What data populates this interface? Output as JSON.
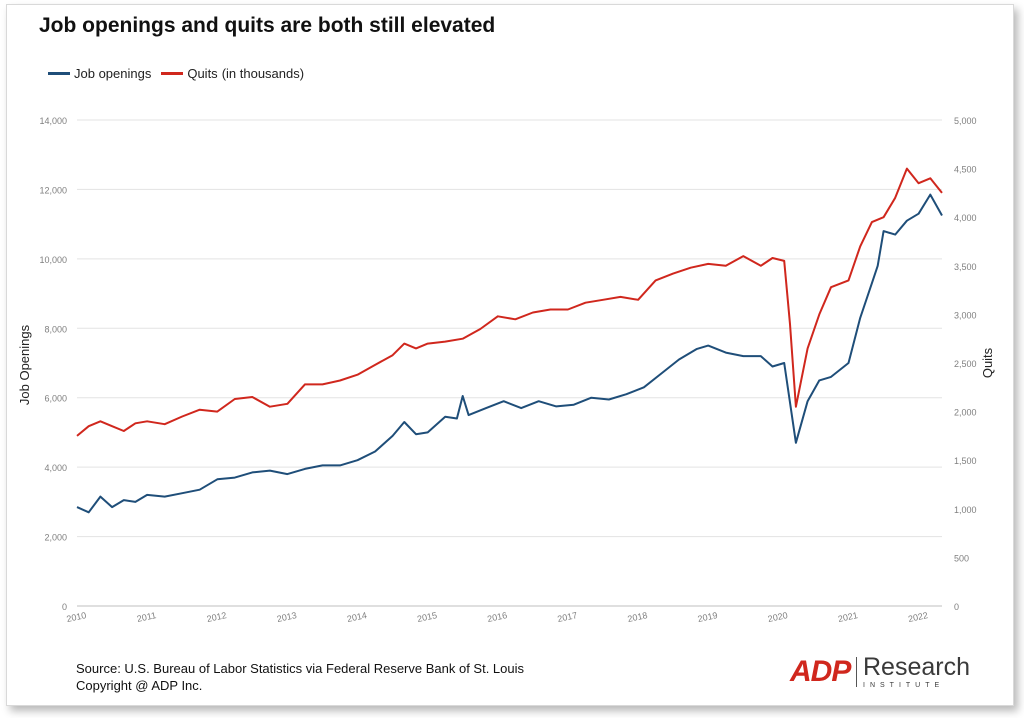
{
  "title": "Job openings and quits are both still elevated",
  "legend": {
    "job_openings": "Job openings",
    "quits": "Quits",
    "unit": "(in thousands)"
  },
  "footer": {
    "source": "Source: U.S. Bureau of Labor Statistics via Federal Reserve Bank of St. Louis",
    "copyright": "Copyright @ ADP Inc."
  },
  "logo": {
    "mark": "ADP",
    "name": "Research",
    "subtitle": "INSTITUTE"
  },
  "colors": {
    "job_openings": "#1f4e79",
    "quits": "#d0271d",
    "grid": "#e3e3e3",
    "tick_text": "#7f7f7f"
  },
  "chart_data": {
    "type": "line",
    "ylabel_left": "Job Openings",
    "ylabel_right": "Quits",
    "ylim_left": [
      0,
      14000
    ],
    "ylim_right": [
      0,
      5000
    ],
    "yticks_left": [
      "0",
      "2,000",
      "4,000",
      "6,000",
      "8,000",
      "10,000",
      "12,000",
      "14,000"
    ],
    "yticks_right": [
      "0",
      "500",
      "1,000",
      "1,500",
      "2,000",
      "2,500",
      "3,000",
      "3,500",
      "4,000",
      "4,500",
      "5,000"
    ],
    "xticks": [
      "2010",
      "2011",
      "2012",
      "2013",
      "2014",
      "2015",
      "2016",
      "2017",
      "2018",
      "2019",
      "2020",
      "2021",
      "2022"
    ],
    "grid": "horizontal",
    "legend_position": "top-left",
    "x_start": "2010-01",
    "x_end": "2022-05",
    "series": [
      {
        "name": "Job openings",
        "axis": "left",
        "points": [
          [
            "2010-01",
            2850
          ],
          [
            "2010-03",
            2700
          ],
          [
            "2010-05",
            3150
          ],
          [
            "2010-07",
            2850
          ],
          [
            "2010-09",
            3050
          ],
          [
            "2010-11",
            3000
          ],
          [
            "2011-01",
            3200
          ],
          [
            "2011-04",
            3150
          ],
          [
            "2011-07",
            3250
          ],
          [
            "2011-10",
            3350
          ],
          [
            "2012-01",
            3650
          ],
          [
            "2012-04",
            3700
          ],
          [
            "2012-07",
            3850
          ],
          [
            "2012-10",
            3900
          ],
          [
            "2013-01",
            3800
          ],
          [
            "2013-04",
            3950
          ],
          [
            "2013-07",
            4050
          ],
          [
            "2013-10",
            4050
          ],
          [
            "2014-01",
            4200
          ],
          [
            "2014-04",
            4450
          ],
          [
            "2014-07",
            4900
          ],
          [
            "2014-09",
            5300
          ],
          [
            "2014-11",
            4950
          ],
          [
            "2015-01",
            5000
          ],
          [
            "2015-04",
            5450
          ],
          [
            "2015-06",
            5400
          ],
          [
            "2015-07",
            6050
          ],
          [
            "2015-08",
            5500
          ],
          [
            "2015-11",
            5700
          ],
          [
            "2016-02",
            5900
          ],
          [
            "2016-05",
            5700
          ],
          [
            "2016-08",
            5900
          ],
          [
            "2016-11",
            5750
          ],
          [
            "2017-02",
            5800
          ],
          [
            "2017-05",
            6000
          ],
          [
            "2017-08",
            5950
          ],
          [
            "2017-11",
            6100
          ],
          [
            "2018-02",
            6300
          ],
          [
            "2018-05",
            6700
          ],
          [
            "2018-08",
            7100
          ],
          [
            "2018-11",
            7400
          ],
          [
            "2019-01",
            7500
          ],
          [
            "2019-04",
            7300
          ],
          [
            "2019-07",
            7200
          ],
          [
            "2019-10",
            7200
          ],
          [
            "2019-12",
            6900
          ],
          [
            "2020-02",
            7000
          ],
          [
            "2020-04",
            4700
          ],
          [
            "2020-06",
            5900
          ],
          [
            "2020-08",
            6500
          ],
          [
            "2020-10",
            6600
          ],
          [
            "2021-01",
            7000
          ],
          [
            "2021-03",
            8300
          ],
          [
            "2021-05",
            9300
          ],
          [
            "2021-06",
            9800
          ],
          [
            "2021-07",
            10800
          ],
          [
            "2021-09",
            10700
          ],
          [
            "2021-11",
            11100
          ],
          [
            "2022-01",
            11300
          ],
          [
            "2022-03",
            11850
          ],
          [
            "2022-05",
            11250
          ]
        ]
      },
      {
        "name": "Quits",
        "axis": "right",
        "points": [
          [
            "2010-01",
            1750
          ],
          [
            "2010-03",
            1850
          ],
          [
            "2010-05",
            1900
          ],
          [
            "2010-07",
            1850
          ],
          [
            "2010-09",
            1800
          ],
          [
            "2010-11",
            1880
          ],
          [
            "2011-01",
            1900
          ],
          [
            "2011-04",
            1870
          ],
          [
            "2011-07",
            1950
          ],
          [
            "2011-10",
            2020
          ],
          [
            "2012-01",
            2000
          ],
          [
            "2012-04",
            2130
          ],
          [
            "2012-07",
            2150
          ],
          [
            "2012-10",
            2050
          ],
          [
            "2013-01",
            2080
          ],
          [
            "2013-04",
            2280
          ],
          [
            "2013-07",
            2280
          ],
          [
            "2013-10",
            2320
          ],
          [
            "2014-01",
            2380
          ],
          [
            "2014-04",
            2480
          ],
          [
            "2014-07",
            2580
          ],
          [
            "2014-09",
            2700
          ],
          [
            "2014-11",
            2650
          ],
          [
            "2015-01",
            2700
          ],
          [
            "2015-04",
            2720
          ],
          [
            "2015-07",
            2750
          ],
          [
            "2015-10",
            2850
          ],
          [
            "2016-01",
            2980
          ],
          [
            "2016-04",
            2950
          ],
          [
            "2016-07",
            3020
          ],
          [
            "2016-10",
            3050
          ],
          [
            "2017-01",
            3050
          ],
          [
            "2017-04",
            3120
          ],
          [
            "2017-07",
            3150
          ],
          [
            "2017-10",
            3180
          ],
          [
            "2018-01",
            3150
          ],
          [
            "2018-04",
            3350
          ],
          [
            "2018-07",
            3420
          ],
          [
            "2018-10",
            3480
          ],
          [
            "2019-01",
            3520
          ],
          [
            "2019-04",
            3500
          ],
          [
            "2019-07",
            3600
          ],
          [
            "2019-10",
            3500
          ],
          [
            "2019-12",
            3580
          ],
          [
            "2020-02",
            3550
          ],
          [
            "2020-03",
            2900
          ],
          [
            "2020-04",
            2050
          ],
          [
            "2020-06",
            2650
          ],
          [
            "2020-08",
            3000
          ],
          [
            "2020-10",
            3280
          ],
          [
            "2021-01",
            3350
          ],
          [
            "2021-03",
            3700
          ],
          [
            "2021-05",
            3950
          ],
          [
            "2021-07",
            4000
          ],
          [
            "2021-09",
            4200
          ],
          [
            "2021-11",
            4500
          ],
          [
            "2022-01",
            4350
          ],
          [
            "2022-03",
            4400
          ],
          [
            "2022-05",
            4250
          ]
        ]
      }
    ]
  }
}
